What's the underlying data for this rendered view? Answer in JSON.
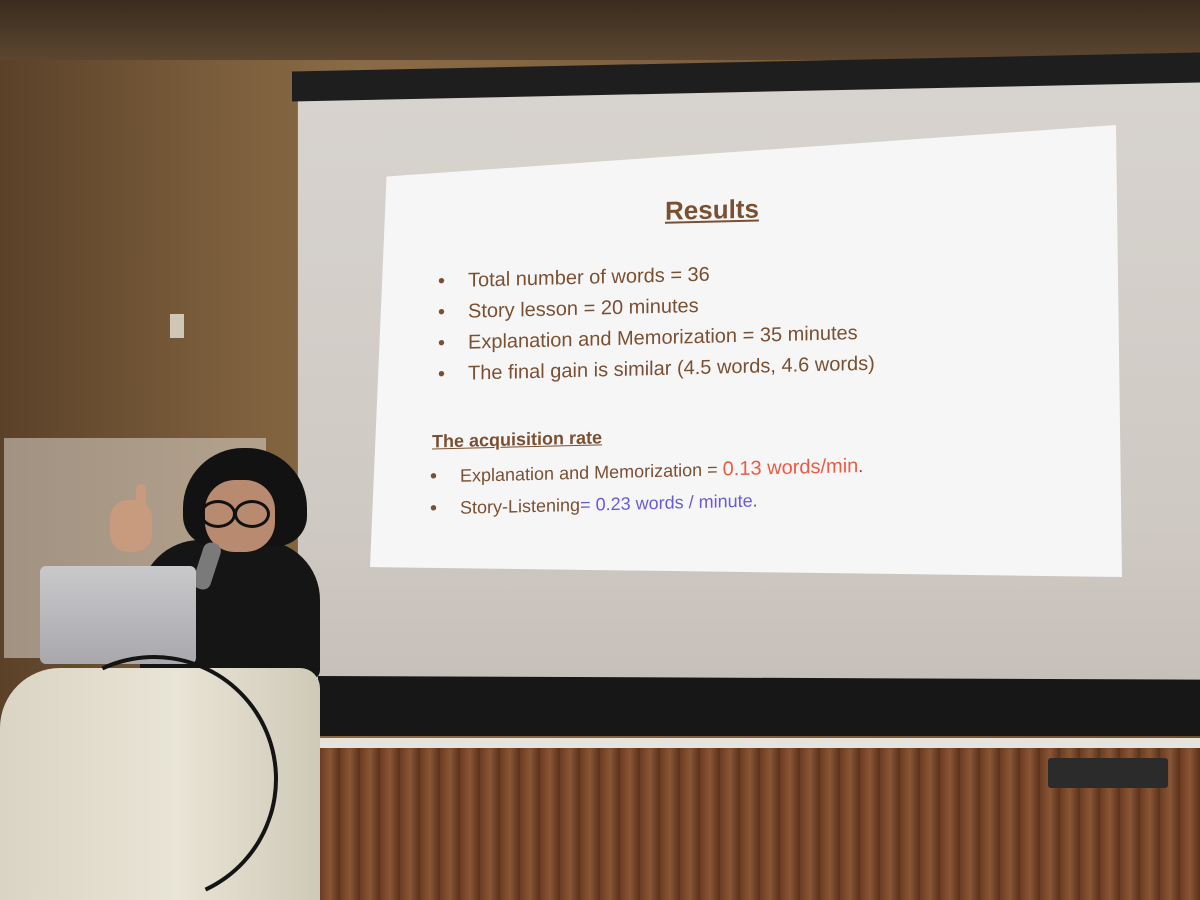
{
  "slide": {
    "title": "Results",
    "bullets": [
      "Total number of words = 36",
      "Story lesson = 20 minutes",
      "Explanation and Memorization = 35 minutes",
      "The final gain is similar (4.5 words, 4.6 words)"
    ],
    "subheading": "The acquisition rate",
    "rates": [
      {
        "label": "Explanation and Memorization = ",
        "value": "0.13 words/min",
        "suffix": ".",
        "value_color": "#ef5a44"
      },
      {
        "label": "Story-Listening",
        "value": "= 0.23 words / minute",
        "suffix": ".",
        "value_color": "#6a5ad9"
      }
    ],
    "bullet_symbol": "•",
    "text_color": "#7a5032"
  },
  "laptop": {
    "logo_icon": "apple-logo-icon",
    "logo_glyph": ""
  }
}
